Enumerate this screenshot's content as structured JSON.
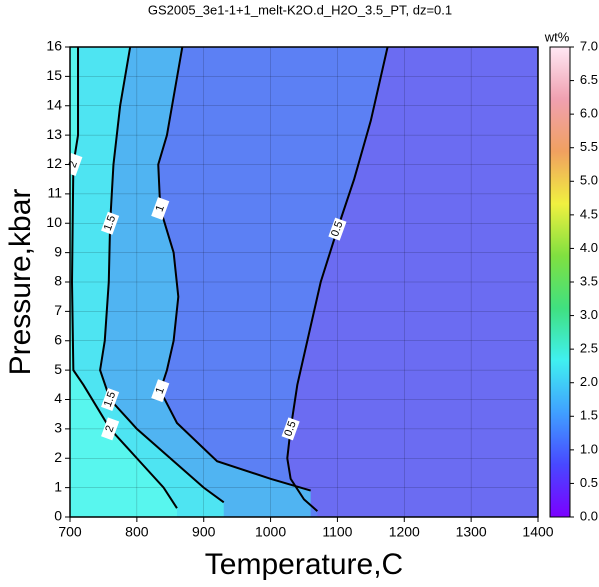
{
  "chart_data": {
    "type": "contour",
    "title": "GS2005_3e1-1+1_melt-K2O.d_H2O_3.5_PT, dz=0.1",
    "xlabel": "Temperature,C",
    "ylabel": "Pressure,kbar",
    "xlim": [
      700,
      1400
    ],
    "ylim": [
      0,
      16
    ],
    "xticks": [
      700,
      800,
      900,
      1000,
      1100,
      1200,
      1300,
      1400
    ],
    "yticks": [
      0,
      1,
      2,
      3,
      4,
      5,
      6,
      7,
      8,
      9,
      10,
      11,
      12,
      13,
      14,
      15,
      16
    ],
    "grid": true,
    "background": "#6b6cf2",
    "contours": [
      {
        "level": 0.5,
        "color": "#5c80f4",
        "temperature": [
          1175,
          1150,
          1125,
          1100,
          1075,
          1055,
          1040,
          1030,
          1025,
          1030,
          1050,
          1070
        ],
        "pressure": [
          16,
          13.5,
          11.5,
          9.8,
          8,
          6,
          4.5,
          3,
          2,
          1.3,
          0.6,
          0.2
        ]
      },
      {
        "level": 1,
        "color": "#50b4f2",
        "temperature": [
          868,
          845,
          832,
          835,
          855,
          862,
          855,
          845,
          835,
          860,
          920,
          1000,
          1060
        ],
        "pressure": [
          16,
          13,
          12,
          10.5,
          9,
          7.5,
          6,
          5,
          4.3,
          3.2,
          1.9,
          1.3,
          0.9
        ]
      },
      {
        "level": 1.5,
        "color": "#4ee4f2",
        "temperature": [
          790,
          775,
          765,
          760,
          758,
          752,
          745,
          760,
          800,
          860,
          900,
          930
        ],
        "pressure": [
          16,
          14,
          12,
          10,
          8,
          6,
          5,
          4,
          3,
          1.8,
          1,
          0.5
        ]
      },
      {
        "level": 2,
        "color": "#58f6ee",
        "temperature": [
          712,
          712,
          705,
          703,
          705,
          720,
          760,
          800,
          840,
          860
        ],
        "pressure": [
          16,
          13,
          12,
          8,
          5,
          4.5,
          3,
          2,
          1,
          0.3
        ]
      }
    ],
    "colorbar": {
      "label": "wt%",
      "clim": [
        0,
        7
      ],
      "ticks": [
        {
          "value": 0,
          "label": "0.0"
        },
        0.5,
        {
          "value": 1,
          "label": "1.0"
        },
        1.5,
        {
          "value": 2,
          "label": "2.0"
        },
        2.5,
        {
          "value": 3,
          "label": "3.0"
        },
        3.5,
        {
          "value": 4,
          "label": "4.0"
        },
        4.5,
        {
          "value": 5,
          "label": "5.0"
        },
        5.5,
        {
          "value": 6,
          "label": "6.0"
        },
        6.5,
        {
          "value": 7,
          "label": "7.0"
        }
      ],
      "colormap": [
        "#7b00ff",
        "#4848ff",
        "#40a0ff",
        "#40f0f0",
        "#40e080",
        "#80e040",
        "#f0f040",
        "#f0a060",
        "#f0a0b0",
        "#ffe8f4"
      ]
    }
  }
}
